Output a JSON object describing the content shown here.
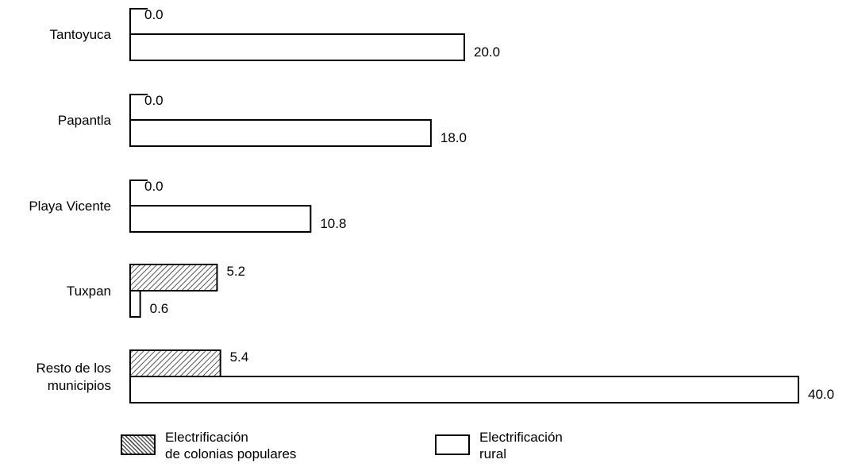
{
  "chart_data": {
    "type": "bar",
    "orientation": "horizontal",
    "categories": [
      "Tantoyuca",
      "Papantla",
      "Playa Vicente",
      "Tuxpan",
      "Resto de los municipios"
    ],
    "category_lines": [
      [
        "Tantoyuca"
      ],
      [
        "Papantla"
      ],
      [
        "Playa Vicente"
      ],
      [
        "Tuxpan"
      ],
      [
        "Resto de los",
        "municipios"
      ]
    ],
    "series": [
      {
        "name": "Electrificación de colonias populares",
        "name_lines": [
          "Electrificación",
          "de colonias populares"
        ],
        "pattern": "hatched",
        "values": [
          0.0,
          0.0,
          0.0,
          5.2,
          5.4
        ]
      },
      {
        "name": "Electrificación rural",
        "name_lines": [
          "Electrificación",
          "rural"
        ],
        "pattern": "white",
        "values": [
          20.0,
          18.0,
          10.8,
          0.6,
          40.0
        ]
      }
    ],
    "value_labels": [
      [
        "0.0",
        "0.0",
        "0.0",
        "5.2",
        "5.4"
      ],
      [
        "20.0",
        "18.0",
        "10.8",
        "0.6",
        "40.0"
      ]
    ],
    "xlim": [
      0,
      40
    ],
    "grid": false,
    "legend_position": "bottom"
  }
}
